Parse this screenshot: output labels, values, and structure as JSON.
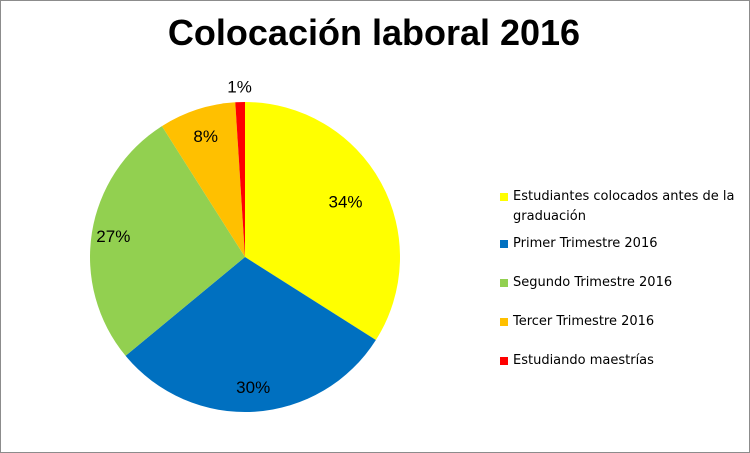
{
  "chart_data": {
    "type": "pie",
    "title": "Colocación laboral 2016",
    "legend_position": "right",
    "categories": [
      "Estudiantes colocados antes de la graduación",
      "Primer Trimestre 2016",
      "Segundo Trimestre 2016",
      "Tercer Trimestre 2016",
      "Estudiando maestrías"
    ],
    "values": [
      34,
      30,
      27,
      8,
      1
    ],
    "labels": [
      "34%",
      "30%",
      "27%",
      "8%",
      "1%"
    ],
    "colors": [
      "#FFFF00",
      "#0070C0",
      "#92D050",
      "#FFC000",
      "#FF0000"
    ]
  }
}
